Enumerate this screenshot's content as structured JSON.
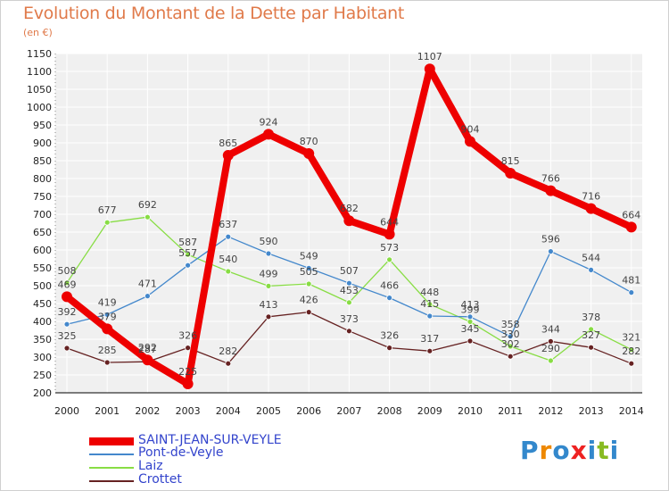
{
  "chart_data": {
    "type": "line",
    "title": "Evolution du Montant de la Dette par Habitant",
    "ylabel": "(en €)",
    "x": [
      "2000",
      "2001",
      "2002",
      "2003",
      "2004",
      "2005",
      "2006",
      "2007",
      "2008",
      "2009",
      "2010",
      "2011",
      "2012",
      "2013",
      "2014"
    ],
    "ylim": [
      200,
      1150
    ],
    "yticks": [
      200,
      250,
      300,
      350,
      400,
      450,
      500,
      550,
      600,
      650,
      700,
      750,
      800,
      850,
      900,
      950,
      1000,
      1050,
      1100,
      1150
    ],
    "grid": true,
    "legend_position": "bottom-left",
    "series": [
      {
        "name": "SAINT-JEAN-SUR-VEYLE",
        "color": "#ee0000",
        "values": [
          469,
          379,
          292,
          225,
          865,
          924,
          870,
          682,
          644,
          1107,
          904,
          815,
          766,
          716,
          664
        ]
      },
      {
        "name": "Pont-de-Veyle",
        "color": "#4488cc",
        "values": [
          392,
          419,
          471,
          557,
          637,
          590,
          549,
          507,
          466,
          415,
          413,
          358,
          596,
          544,
          481
        ]
      },
      {
        "name": "Laiz",
        "color": "#88dd44",
        "values": [
          508,
          677,
          692,
          587,
          540,
          499,
          505,
          453,
          573,
          448,
          399,
          330,
          290,
          378,
          321
        ]
      },
      {
        "name": "Crottet",
        "color": "#662222",
        "values": [
          325,
          285,
          287,
          326,
          282,
          413,
          426,
          373,
          326,
          317,
          345,
          302,
          344,
          327,
          282
        ]
      }
    ]
  },
  "logo": {
    "text": "Proxiti",
    "letters": [
      "P",
      "r",
      "o",
      "x",
      "i",
      "t",
      "i"
    ],
    "colors": [
      "#3388cc",
      "#ee8800",
      "#3388cc",
      "#ee2222",
      "#3388cc",
      "#88bb22",
      "#3388cc"
    ]
  }
}
